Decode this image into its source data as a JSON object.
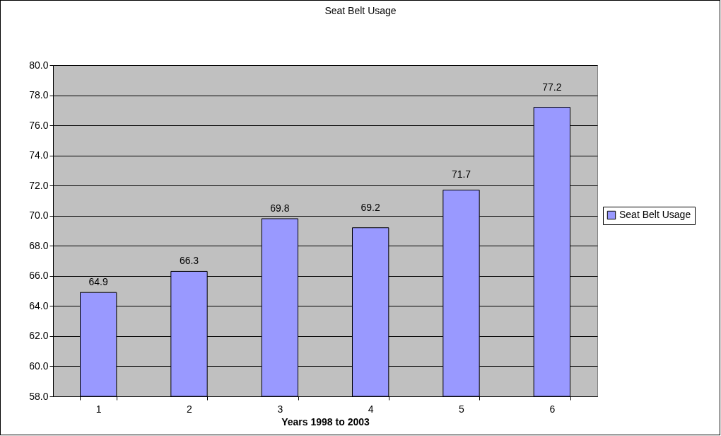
{
  "chart_data": {
    "type": "bar",
    "title": "Seat Belt Usage",
    "xlabel": "Years 1998 to 2003",
    "categories": [
      "1",
      "2",
      "3",
      "4",
      "5",
      "6"
    ],
    "series": [
      {
        "name": "Seat Belt Usage",
        "color": "#9999ff",
        "values": [
          64.9,
          66.3,
          69.8,
          69.2,
          71.7,
          77.2
        ]
      }
    ],
    "ylim": [
      58,
      80
    ],
    "yticks": [
      {
        "value": 58,
        "label": "58.0"
      },
      {
        "value": 60,
        "label": "60.0"
      },
      {
        "value": 62,
        "label": "62.0"
      },
      {
        "value": 64,
        "label": "64.0"
      },
      {
        "value": 66,
        "label": "66.0"
      },
      {
        "value": 68,
        "label": "68.0"
      },
      {
        "value": 70,
        "label": "70.0"
      },
      {
        "value": 72,
        "label": "72.0"
      },
      {
        "value": 74,
        "label": "74.0"
      },
      {
        "value": 76,
        "label": "76.0"
      },
      {
        "value": 78,
        "label": "78.0"
      },
      {
        "value": 80,
        "label": "80.0"
      }
    ],
    "grid": "y",
    "legend": "right",
    "data_labels": true
  }
}
